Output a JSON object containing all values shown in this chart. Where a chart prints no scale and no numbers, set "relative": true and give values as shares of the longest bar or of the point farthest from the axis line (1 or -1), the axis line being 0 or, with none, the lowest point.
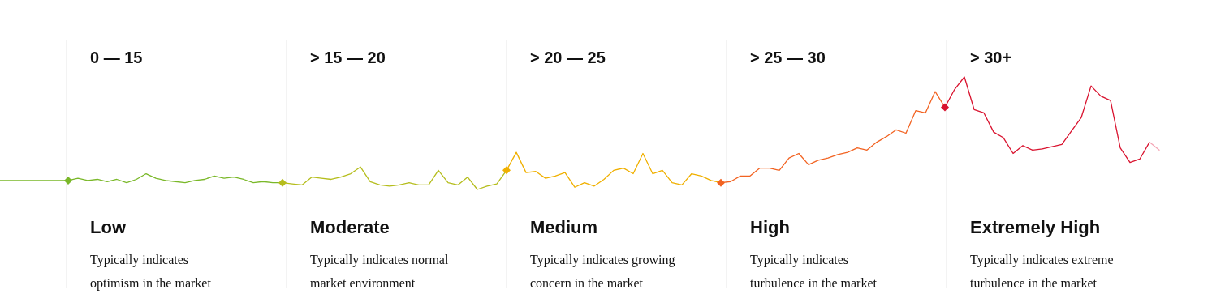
{
  "chart_data": {
    "type": "line",
    "relative": true,
    "categories": [
      null,
      null,
      null,
      null,
      null,
      null,
      null,
      null,
      null,
      null,
      null,
      null,
      null,
      null,
      null,
      null,
      null,
      null,
      null,
      null,
      null,
      null,
      null,
      null,
      null,
      null,
      null,
      null,
      null,
      null,
      null,
      null,
      null,
      null,
      null,
      null,
      null,
      null,
      null,
      null,
      null,
      null,
      null,
      null,
      null,
      null,
      null,
      null,
      null,
      null,
      null,
      null,
      null,
      null,
      null,
      null,
      null,
      null,
      null,
      null,
      null,
      null,
      null,
      null,
      null,
      null,
      null,
      null,
      null,
      null,
      null,
      null,
      null,
      null,
      null,
      null,
      null,
      null,
      null,
      null,
      null,
      null,
      null,
      null,
      null,
      null,
      null,
      null,
      null,
      null,
      null,
      null,
      null,
      null,
      null,
      null,
      null,
      null,
      null,
      null,
      null,
      null,
      null,
      null,
      null,
      null,
      null,
      null,
      null,
      null,
      null,
      null,
      null,
      null,
      null,
      null,
      null,
      null,
      null,
      null
    ],
    "series": [
      {
        "color": "#7ab829",
        "values": [
          0.08,
          0.08,
          0.08,
          0.08,
          0.08,
          0.08,
          0.08,
          0.08,
          null,
          null,
          null,
          null,
          null,
          null,
          null,
          null,
          null,
          null,
          null,
          null,
          null,
          null,
          null,
          null,
          null,
          null,
          null,
          null,
          null,
          null,
          null,
          null,
          null,
          null,
          null,
          null,
          null,
          null,
          null,
          null,
          null,
          null,
          null,
          null,
          null,
          null,
          null,
          null,
          null,
          null,
          null,
          null,
          null,
          null,
          null,
          null,
          null,
          null,
          null,
          null,
          null,
          null,
          null,
          null,
          null,
          null,
          null,
          null,
          null,
          null,
          null,
          null,
          null,
          null,
          null,
          null,
          null,
          null,
          null,
          null,
          null,
          null,
          null,
          null,
          null,
          null,
          null,
          null,
          null,
          null,
          null,
          null,
          null,
          null,
          null,
          null,
          null,
          null,
          null,
          null,
          null,
          null,
          null,
          null,
          null,
          null,
          null,
          null,
          null,
          null,
          null,
          null,
          null,
          null,
          null,
          null,
          null,
          null,
          null,
          null
        ]
      },
      {
        "color": "#7ab829",
        "values": [
          null,
          null,
          null,
          null,
          null,
          null,
          null,
          0.08,
          0.1,
          0.08,
          0.09,
          0.07,
          0.09,
          0.06,
          0.09,
          0.14,
          0.1,
          0.08,
          0.07,
          0.06,
          0.08,
          0.09,
          0.12,
          0.1,
          0.11,
          0.09,
          0.06,
          0.07,
          0.06,
          0.06,
          null,
          null,
          null,
          null,
          null,
          null,
          null,
          null,
          null,
          null,
          null,
          null,
          null,
          null,
          null,
          null,
          null,
          null,
          null,
          null,
          null,
          null,
          null,
          null,
          null,
          null,
          null,
          null,
          null,
          null,
          null,
          null,
          null,
          null,
          null,
          null,
          null,
          null,
          null,
          null,
          null,
          null,
          null,
          null,
          null,
          null,
          null,
          null,
          null,
          null,
          null,
          null,
          null,
          null,
          null,
          null,
          null,
          null,
          null,
          null,
          null,
          null,
          null,
          null,
          null,
          null,
          null,
          null,
          null,
          null,
          null,
          null,
          null,
          null,
          null,
          null,
          null,
          null,
          null,
          null,
          null,
          null,
          null,
          null,
          null,
          null,
          null,
          null,
          null,
          null
        ]
      },
      {
        "color": "#b5bd1c",
        "values": [
          null,
          null,
          null,
          null,
          null,
          null,
          null,
          null,
          null,
          null,
          null,
          null,
          null,
          null,
          null,
          null,
          null,
          null,
          null,
          null,
          null,
          null,
          null,
          null,
          null,
          null,
          null,
          null,
          null,
          0.06,
          0.05,
          0.04,
          0.11,
          0.1,
          0.09,
          0.11,
          0.14,
          0.2,
          0.07,
          0.04,
          0.03,
          0.04,
          0.06,
          0.04,
          0.04,
          0.17,
          0.06,
          0.04,
          0.11,
          0,
          0.03,
          0.05,
          0.17,
          null,
          null,
          null,
          null,
          null,
          null,
          null,
          null,
          null,
          null,
          null,
          null,
          null,
          null,
          null,
          null,
          null,
          null,
          null,
          null,
          null,
          null,
          null,
          null,
          null,
          null,
          null,
          null,
          null,
          null,
          null,
          null,
          null,
          null,
          null,
          null,
          null,
          null,
          null,
          null,
          null,
          null,
          null,
          null,
          null,
          null,
          null,
          null,
          null,
          null,
          null,
          null,
          null,
          null,
          null,
          null,
          null,
          null,
          null,
          null,
          null,
          null,
          null,
          null,
          null,
          null,
          null
        ]
      },
      {
        "color": "#f0b000",
        "values": [
          null,
          null,
          null,
          null,
          null,
          null,
          null,
          null,
          null,
          null,
          null,
          null,
          null,
          null,
          null,
          null,
          null,
          null,
          null,
          null,
          null,
          null,
          null,
          null,
          null,
          null,
          null,
          null,
          null,
          null,
          null,
          null,
          null,
          null,
          null,
          null,
          null,
          null,
          null,
          null,
          null,
          null,
          null,
          null,
          null,
          null,
          null,
          null,
          null,
          null,
          null,
          null,
          0.17,
          0.33,
          0.15,
          0.16,
          0.1,
          0.12,
          0.15,
          0.02,
          0.06,
          0.03,
          0.09,
          0.17,
          0.19,
          0.14,
          0.32,
          0.14,
          0.17,
          0.06,
          0.04,
          0.14,
          0.12,
          0.08,
          0.06,
          null,
          null,
          null,
          null,
          null,
          null,
          null,
          null,
          null,
          null,
          null,
          null,
          null,
          null,
          null,
          null,
          null,
          null,
          null,
          null,
          null,
          null,
          null,
          null,
          null,
          null,
          null,
          null,
          null,
          null,
          null,
          null,
          null,
          null,
          null,
          null,
          null,
          null,
          null,
          null,
          null,
          null,
          null,
          null,
          null
        ]
      },
      {
        "color": "#f26322",
        "values": [
          null,
          null,
          null,
          null,
          null,
          null,
          null,
          null,
          null,
          null,
          null,
          null,
          null,
          null,
          null,
          null,
          null,
          null,
          null,
          null,
          null,
          null,
          null,
          null,
          null,
          null,
          null,
          null,
          null,
          null,
          null,
          null,
          null,
          null,
          null,
          null,
          null,
          null,
          null,
          null,
          null,
          null,
          null,
          null,
          null,
          null,
          null,
          null,
          null,
          null,
          null,
          null,
          null,
          null,
          null,
          null,
          null,
          null,
          null,
          null,
          null,
          null,
          null,
          null,
          null,
          null,
          null,
          null,
          null,
          null,
          null,
          null,
          null,
          null,
          0.06,
          0.07,
          0.12,
          0.12,
          0.19,
          0.19,
          0.17,
          0.28,
          0.32,
          0.22,
          0.26,
          0.28,
          0.31,
          0.33,
          0.37,
          0.35,
          0.42,
          0.47,
          0.53,
          0.5,
          0.7,
          0.68,
          0.87,
          0.73,
          null,
          null,
          null,
          null,
          null,
          null,
          null,
          null,
          null,
          null,
          null,
          null,
          null,
          null,
          null,
          null,
          null,
          null,
          null,
          null,
          null,
          null
        ]
      },
      {
        "color": "#d9132f",
        "values": [
          null,
          null,
          null,
          null,
          null,
          null,
          null,
          null,
          null,
          null,
          null,
          null,
          null,
          null,
          null,
          null,
          null,
          null,
          null,
          null,
          null,
          null,
          null,
          null,
          null,
          null,
          null,
          null,
          null,
          null,
          null,
          null,
          null,
          null,
          null,
          null,
          null,
          null,
          null,
          null,
          null,
          null,
          null,
          null,
          null,
          null,
          null,
          null,
          null,
          null,
          null,
          null,
          null,
          null,
          null,
          null,
          null,
          null,
          null,
          null,
          null,
          null,
          null,
          null,
          null,
          null,
          null,
          null,
          null,
          null,
          null,
          null,
          null,
          null,
          null,
          null,
          null,
          null,
          null,
          null,
          null,
          null,
          null,
          null,
          null,
          null,
          null,
          null,
          null,
          null,
          null,
          null,
          null,
          null,
          null,
          null,
          null,
          0.73,
          0.89,
          1,
          0.71,
          0.68,
          0.51,
          0.46,
          0.32,
          0.39,
          0.35,
          0.36,
          0.38,
          0.4,
          0.52,
          0.64,
          0.92,
          0.83,
          0.79,
          0.37,
          0.24,
          0.27,
          0.42,
          null
        ]
      },
      {
        "color": "#f4a6b5",
        "values": [
          null,
          null,
          null,
          null,
          null,
          null,
          null,
          null,
          null,
          null,
          null,
          null,
          null,
          null,
          null,
          null,
          null,
          null,
          null,
          null,
          null,
          null,
          null,
          null,
          null,
          null,
          null,
          null,
          null,
          null,
          null,
          null,
          null,
          null,
          null,
          null,
          null,
          null,
          null,
          null,
          null,
          null,
          null,
          null,
          null,
          null,
          null,
          null,
          null,
          null,
          null,
          null,
          null,
          null,
          null,
          null,
          null,
          null,
          null,
          null,
          null,
          null,
          null,
          null,
          null,
          null,
          null,
          null,
          null,
          null,
          null,
          null,
          null,
          null,
          null,
          null,
          null,
          null,
          null,
          null,
          null,
          null,
          null,
          null,
          null,
          null,
          null,
          null,
          null,
          null,
          null,
          null,
          null,
          null,
          null,
          null,
          null,
          null,
          null,
          null,
          null,
          null,
          null,
          null,
          null,
          null,
          null,
          null,
          null,
          null,
          null,
          null,
          null,
          null,
          null,
          null,
          null,
          null,
          0.42,
          0.35
        ]
      }
    ],
    "annotations": [
      "0 — 15",
      "Low",
      "Typically indicates\noptimism in the market",
      "> 15 — 20",
      "Moderate",
      "Typically indicates normal\nmarket environment",
      "> 20 — 25",
      "Medium",
      "Typically indicates growing\nconcern in the market",
      "> 25 — 30",
      "High",
      "Typically indicates\nturbulence in the market",
      "> 30+",
      "Extremely High",
      "Typically indicates extreme\nturbulence in the market"
    ]
  }
}
